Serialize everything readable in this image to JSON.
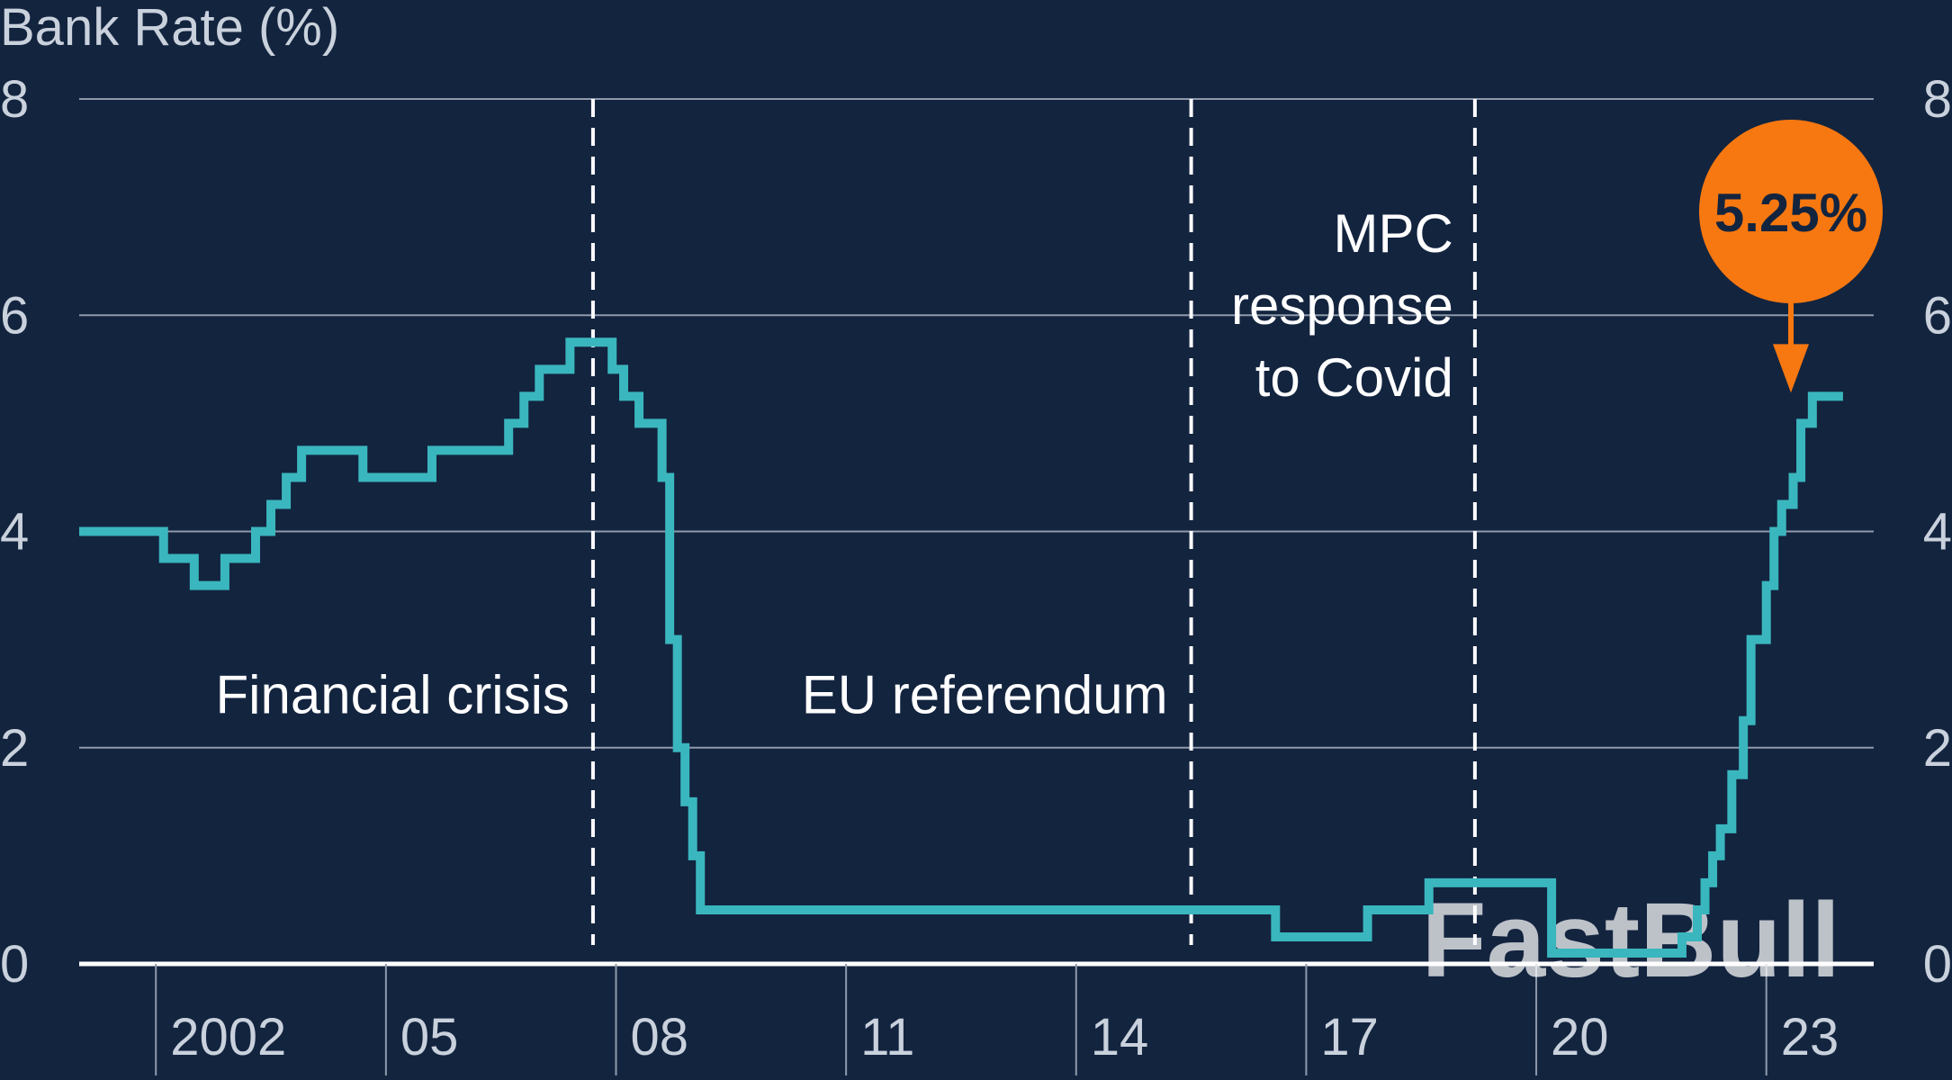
{
  "chart_data": {
    "type": "line",
    "title": "",
    "ylabel": "Bank Rate (%)",
    "xlabel": "",
    "ylim": [
      0,
      8
    ],
    "xlim": [
      2001.0,
      2024.4
    ],
    "yticks": [
      0,
      2,
      4,
      6,
      8
    ],
    "xticks": [
      {
        "value": 2002,
        "label": "2002"
      },
      {
        "value": 2005,
        "label": "05"
      },
      {
        "value": 2008,
        "label": "08"
      },
      {
        "value": 2011,
        "label": "11"
      },
      {
        "value": 2014,
        "label": "14"
      },
      {
        "value": 2017,
        "label": "17"
      },
      {
        "value": 2020,
        "label": "20"
      },
      {
        "value": 2023,
        "label": "23"
      }
    ],
    "grid": true,
    "y_axis_both_sides": true,
    "series": [
      {
        "color": "#3ab6be",
        "step": true,
        "x": [
          2001.0,
          2002.1,
          2002.5,
          2002.9,
          2003.3,
          2003.5,
          2003.7,
          2003.9,
          2004.05,
          2004.7,
          2005.6,
          2006.6,
          2006.8,
          2007.0,
          2007.4,
          2007.95,
          2008.1,
          2008.3,
          2008.6,
          2008.7,
          2008.8,
          2008.9,
          2009.0,
          2009.1,
          2016.6,
          2017.8,
          2018.6,
          2020.2,
          2021.9,
          2022.1,
          2022.2,
          2022.3,
          2022.4,
          2022.55,
          2022.7,
          2022.8,
          2023.0,
          2023.1,
          2023.2,
          2023.35,
          2023.45,
          2023.6,
          2023.75,
          2024.0
        ],
        "y": [
          4.0,
          3.75,
          3.5,
          3.75,
          4.0,
          4.25,
          4.5,
          4.75,
          4.75,
          4.5,
          4.75,
          5.0,
          5.25,
          5.5,
          5.75,
          5.5,
          5.25,
          5.0,
          4.5,
          3.0,
          2.0,
          1.5,
          1.0,
          0.5,
          0.25,
          0.5,
          0.75,
          0.1,
          0.25,
          0.5,
          0.75,
          1.0,
          1.25,
          1.75,
          2.25,
          3.0,
          3.5,
          4.0,
          4.25,
          4.5,
          5.0,
          5.25,
          5.25,
          5.25
        ]
      }
    ],
    "event_lines": [
      {
        "x": 2007.7,
        "label": "Financial crisis"
      },
      {
        "x": 2015.5,
        "label": "EU referendum"
      },
      {
        "x": 2019.2,
        "label": [
          "MPC",
          "response",
          "to Covid"
        ]
      }
    ],
    "callout": {
      "text": "5.25%",
      "value": 5.25,
      "x": 2023.0,
      "color": "#f77810"
    },
    "watermark": "FastBull"
  },
  "colors": {
    "background": "#13243f",
    "line": "#3ab6be",
    "grid": "#8e9aab",
    "axis_text": "#c9d1dc",
    "annotation_text": "#ffffff",
    "callout": "#f77810"
  }
}
